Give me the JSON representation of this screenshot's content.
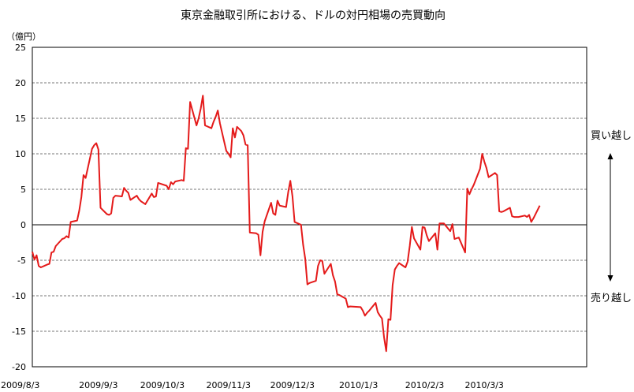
{
  "chart_data": {
    "type": "line",
    "title": "東京金融取引所における、ドルの対円相場の売買動向",
    "ylabel": "（億円）",
    "xlabel": "",
    "ylim": [
      -20,
      25
    ],
    "yticks": [
      -20,
      -15,
      -10,
      -5,
      0,
      5,
      10,
      15,
      20,
      25
    ],
    "grid": "horizontal dashed",
    "xlim": [
      "2009-08-03",
      "2010-04-20"
    ],
    "xticks": [
      {
        "date": "2009-08-03",
        "label": "2009/8/3"
      },
      {
        "date": "2009-09-03",
        "label": "2009/9/3"
      },
      {
        "date": "2009-10-03",
        "label": "2009/10/3"
      },
      {
        "date": "2009-11-03",
        "label": "2009/11/3"
      },
      {
        "date": "2009-12-03",
        "label": "2009/12/3"
      },
      {
        "date": "2010-01-03",
        "label": "2010/1/3"
      },
      {
        "date": "2010-02-03",
        "label": "2010/2/3"
      },
      {
        "date": "2010-03-03",
        "label": "2010/3/3"
      }
    ],
    "annotations": {
      "buy": "買い越し",
      "sell": "売り越し"
    },
    "series": [
      {
        "color": "#e41a1a",
        "points": [
          [
            "2009-08-03",
            -3.8
          ],
          [
            "2009-08-04",
            -4.9
          ],
          [
            "2009-08-05",
            -4.3
          ],
          [
            "2009-08-06",
            -5.8
          ],
          [
            "2009-08-07",
            -6.0
          ],
          [
            "2009-08-10",
            -5.6
          ],
          [
            "2009-08-11",
            -5.5
          ],
          [
            "2009-08-12",
            -3.9
          ],
          [
            "2009-08-13",
            -3.8
          ],
          [
            "2009-08-14",
            -3.0
          ],
          [
            "2009-08-17",
            -2.0
          ],
          [
            "2009-08-18",
            -1.9
          ],
          [
            "2009-08-19",
            -1.6
          ],
          [
            "2009-08-20",
            -1.8
          ],
          [
            "2009-08-21",
            0.4
          ],
          [
            "2009-08-24",
            0.6
          ],
          [
            "2009-08-25",
            2.0
          ],
          [
            "2009-08-26",
            3.9
          ],
          [
            "2009-08-27",
            7.0
          ],
          [
            "2009-08-28",
            6.6
          ],
          [
            "2009-08-31",
            10.7
          ],
          [
            "2009-09-01",
            11.2
          ],
          [
            "2009-09-02",
            11.5
          ],
          [
            "2009-09-03",
            10.6
          ],
          [
            "2009-09-04",
            2.4
          ],
          [
            "2009-09-07",
            1.5
          ],
          [
            "2009-09-08",
            1.4
          ],
          [
            "2009-09-09",
            1.6
          ],
          [
            "2009-09-10",
            3.8
          ],
          [
            "2009-09-11",
            4.1
          ],
          [
            "2009-09-14",
            4.0
          ],
          [
            "2009-09-15",
            5.2
          ],
          [
            "2009-09-16",
            4.8
          ],
          [
            "2009-09-17",
            4.5
          ],
          [
            "2009-09-18",
            3.5
          ],
          [
            "2009-09-21",
            4.1
          ],
          [
            "2009-09-22",
            3.6
          ],
          [
            "2009-09-23",
            3.3
          ],
          [
            "2009-09-24",
            3.1
          ],
          [
            "2009-09-25",
            2.9
          ],
          [
            "2009-09-28",
            4.4
          ],
          [
            "2009-09-29",
            3.9
          ],
          [
            "2009-09-30",
            4.0
          ],
          [
            "2009-10-01",
            5.9
          ],
          [
            "2009-10-02",
            5.8
          ],
          [
            "2009-10-05",
            5.5
          ],
          [
            "2009-10-06",
            5.0
          ],
          [
            "2009-10-07",
            6.0
          ],
          [
            "2009-10-08",
            5.7
          ],
          [
            "2009-10-09",
            6.1
          ],
          [
            "2009-10-12",
            6.3
          ],
          [
            "2009-10-13",
            6.2
          ],
          [
            "2009-10-14",
            10.8
          ],
          [
            "2009-10-15",
            10.7
          ],
          [
            "2009-10-16",
            17.3
          ],
          [
            "2009-10-19",
            14.0
          ],
          [
            "2009-10-20",
            15.0
          ],
          [
            "2009-10-21",
            16.4
          ],
          [
            "2009-10-22",
            18.2
          ],
          [
            "2009-10-23",
            14.0
          ],
          [
            "2009-10-26",
            13.6
          ],
          [
            "2009-10-27",
            14.5
          ],
          [
            "2009-10-28",
            15.2
          ],
          [
            "2009-10-29",
            16.1
          ],
          [
            "2009-10-30",
            14.3
          ],
          [
            "2009-11-02",
            10.4
          ],
          [
            "2009-11-03",
            10.0
          ],
          [
            "2009-11-04",
            9.5
          ],
          [
            "2009-11-05",
            13.6
          ],
          [
            "2009-11-06",
            12.3
          ],
          [
            "2009-11-07",
            13.8
          ],
          [
            "2009-11-09",
            13.2
          ],
          [
            "2009-11-10",
            12.6
          ],
          [
            "2009-11-11",
            11.3
          ],
          [
            "2009-11-12",
            11.2
          ],
          [
            "2009-11-13",
            -1.1
          ],
          [
            "2009-11-16",
            -1.2
          ],
          [
            "2009-11-17",
            -1.4
          ],
          [
            "2009-11-18",
            -4.3
          ],
          [
            "2009-11-19",
            -1.0
          ],
          [
            "2009-11-20",
            0.5
          ],
          [
            "2009-11-23",
            3.1
          ],
          [
            "2009-11-24",
            1.6
          ],
          [
            "2009-11-25",
            1.4
          ],
          [
            "2009-11-26",
            3.4
          ],
          [
            "2009-11-27",
            2.7
          ],
          [
            "2009-11-30",
            2.5
          ],
          [
            "2009-12-01",
            4.6
          ],
          [
            "2009-12-02",
            6.2
          ],
          [
            "2009-12-03",
            4.0
          ],
          [
            "2009-12-04",
            0.4
          ],
          [
            "2009-12-07",
            0.0
          ],
          [
            "2009-12-08",
            -2.8
          ],
          [
            "2009-12-09",
            -4.8
          ],
          [
            "2009-12-10",
            -8.4
          ],
          [
            "2009-12-11",
            -8.2
          ],
          [
            "2009-12-14",
            -7.9
          ],
          [
            "2009-12-15",
            -5.8
          ],
          [
            "2009-12-16",
            -5.0
          ],
          [
            "2009-12-17",
            -5.1
          ],
          [
            "2009-12-18",
            -6.9
          ],
          [
            "2009-12-21",
            -5.5
          ],
          [
            "2009-12-22",
            -7.1
          ],
          [
            "2009-12-23",
            -8.0
          ],
          [
            "2009-12-24",
            -9.8
          ],
          [
            "2009-12-25",
            -9.9
          ],
          [
            "2009-12-28",
            -10.4
          ],
          [
            "2009-12-29",
            -11.6
          ],
          [
            "2009-12-30",
            -11.5
          ],
          [
            "2010-01-04",
            -11.6
          ],
          [
            "2010-01-05",
            -12.1
          ],
          [
            "2010-01-06",
            -12.8
          ],
          [
            "2010-01-07",
            -12.4
          ],
          [
            "2010-01-08",
            -12.1
          ],
          [
            "2010-01-11",
            -11.0
          ],
          [
            "2010-01-12",
            -12.3
          ],
          [
            "2010-01-13",
            -12.8
          ],
          [
            "2010-01-14",
            -13.2
          ],
          [
            "2010-01-15",
            -15.9
          ],
          [
            "2010-01-16",
            -17.8
          ],
          [
            "2010-01-17",
            -13.3
          ],
          [
            "2010-01-18",
            -13.4
          ],
          [
            "2010-01-19",
            -8.5
          ],
          [
            "2010-01-20",
            -6.3
          ],
          [
            "2010-01-21",
            -5.8
          ],
          [
            "2010-01-22",
            -5.4
          ],
          [
            "2010-01-25",
            -6.0
          ],
          [
            "2010-01-26",
            -5.2
          ],
          [
            "2010-01-27",
            -3.0
          ],
          [
            "2010-01-28",
            -0.3
          ],
          [
            "2010-01-29",
            -1.9
          ],
          [
            "2010-02-01",
            -3.5
          ],
          [
            "2010-02-02",
            -0.3
          ],
          [
            "2010-02-03",
            -0.4
          ],
          [
            "2010-02-04",
            -1.5
          ],
          [
            "2010-02-05",
            -2.3
          ],
          [
            "2010-02-08",
            -1.2
          ],
          [
            "2010-02-09",
            -3.5
          ],
          [
            "2010-02-10",
            0.2
          ],
          [
            "2010-02-11",
            0.2
          ],
          [
            "2010-02-12",
            0.2
          ],
          [
            "2010-02-15",
            -0.9
          ],
          [
            "2010-02-16",
            0.1
          ],
          [
            "2010-02-17",
            -2.0
          ],
          [
            "2010-02-18",
            -1.9
          ],
          [
            "2010-02-19",
            -1.8
          ],
          [
            "2010-02-22",
            -3.9
          ],
          [
            "2010-02-23",
            5.1
          ],
          [
            "2010-02-24",
            4.3
          ],
          [
            "2010-02-25",
            5.0
          ],
          [
            "2010-02-26",
            5.6
          ],
          [
            "2010-03-01",
            7.9
          ],
          [
            "2010-03-02",
            10.0
          ],
          [
            "2010-03-03",
            8.9
          ],
          [
            "2010-03-04",
            8.0
          ],
          [
            "2010-03-05",
            6.7
          ],
          [
            "2010-03-08",
            7.3
          ],
          [
            "2010-03-09",
            7.0
          ],
          [
            "2010-03-10",
            1.9
          ],
          [
            "2010-03-11",
            1.8
          ],
          [
            "2010-03-12",
            1.9
          ],
          [
            "2010-03-15",
            2.4
          ],
          [
            "2010-03-16",
            1.2
          ],
          [
            "2010-03-17",
            1.1
          ],
          [
            "2010-03-18",
            1.1
          ],
          [
            "2010-03-19",
            1.1
          ],
          [
            "2010-03-22",
            1.3
          ],
          [
            "2010-03-23",
            1.1
          ],
          [
            "2010-03-24",
            1.4
          ],
          [
            "2010-03-25",
            0.4
          ],
          [
            "2010-03-26",
            0.9
          ],
          [
            "2010-03-29",
            2.7
          ]
        ]
      }
    ]
  }
}
